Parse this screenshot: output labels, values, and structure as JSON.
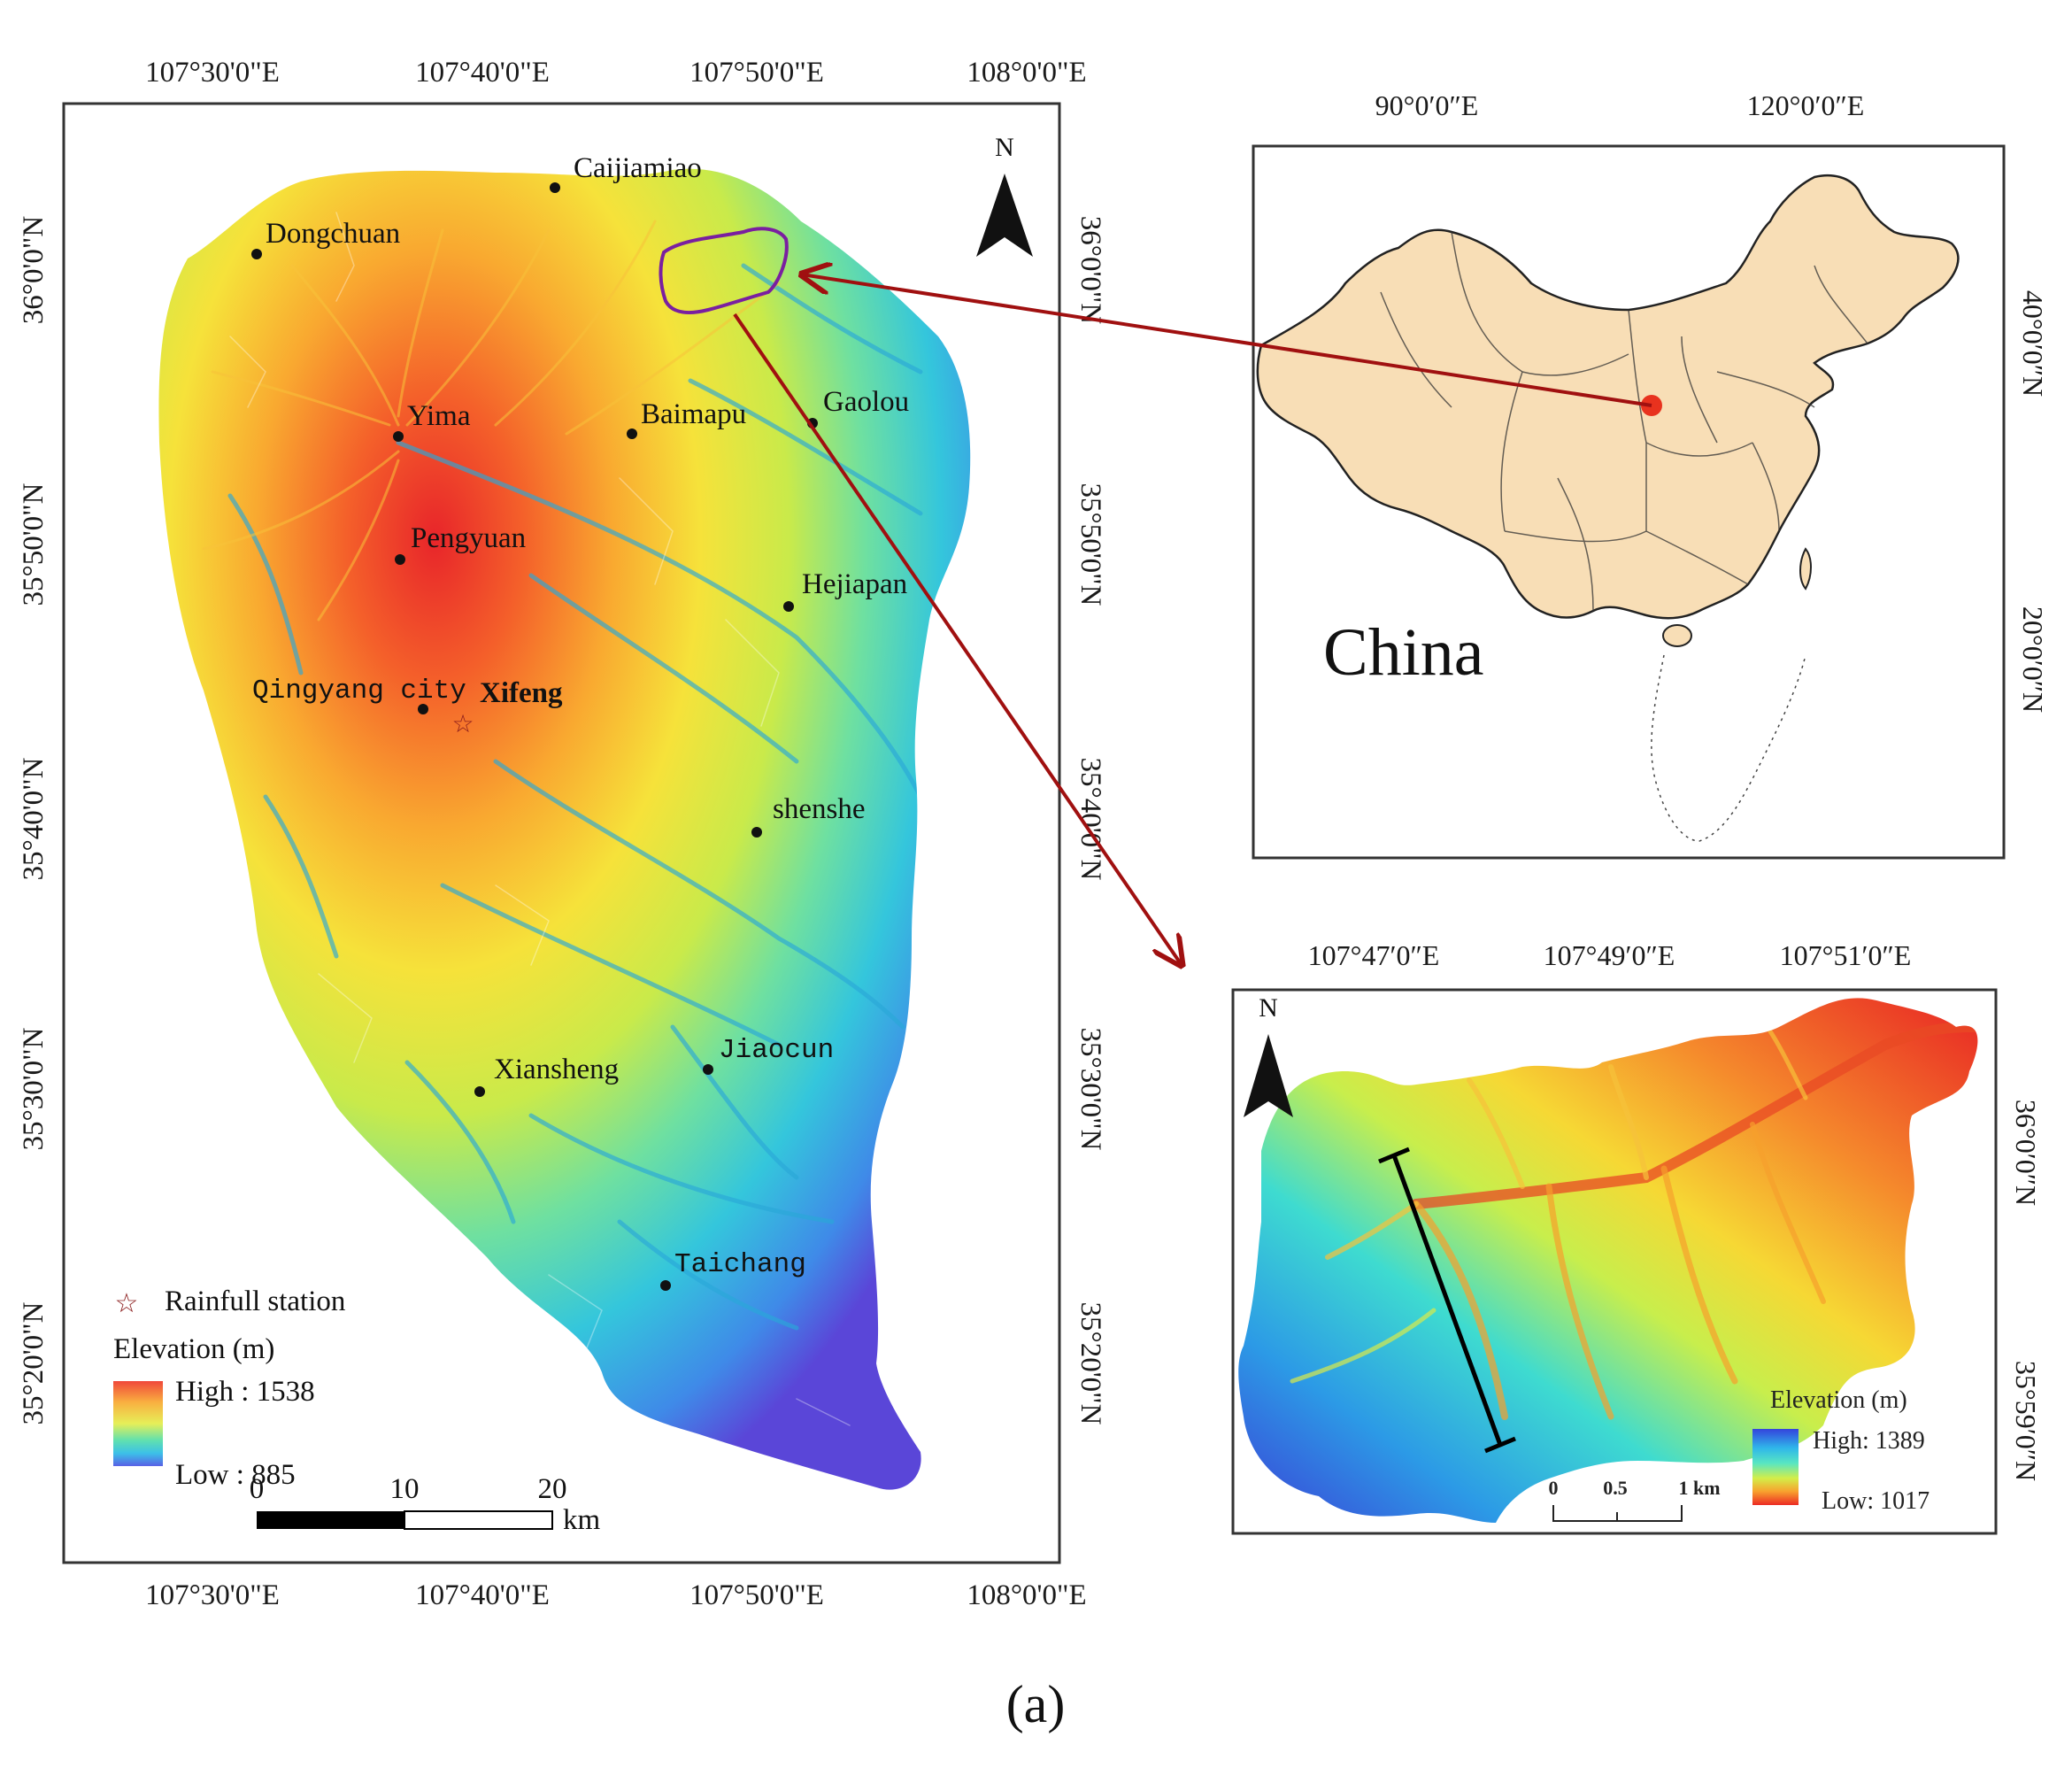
{
  "main_map": {
    "lon_ticks": [
      "107°30'0\"E",
      "107°40'0\"E",
      "107°50'0\"E",
      "108°0'0\"E"
    ],
    "lat_ticks": [
      "36°0'0\"N",
      "35°50'0\"N",
      "35°40'0\"N",
      "35°30'0\"N",
      "35°20'0\"N"
    ],
    "north_label": "N",
    "places": [
      {
        "name": "Caijiamiao"
      },
      {
        "name": "Dongchuan"
      },
      {
        "name": "Yima"
      },
      {
        "name": "Baimapu"
      },
      {
        "name": "Gaolou"
      },
      {
        "name": "Pengyuan"
      },
      {
        "name": "Hejiapan"
      },
      {
        "name": "Qingyang city"
      },
      {
        "name": "Xifeng"
      },
      {
        "name": "shenshe"
      },
      {
        "name": "Jiaocun"
      },
      {
        "name": "Xiansheng"
      },
      {
        "name": "Taichang"
      }
    ],
    "legend": {
      "station_label": "Rainfull station",
      "elevation_title": "Elevation (m)",
      "high_label": "High : 1538",
      "low_label": "Low : 885"
    },
    "scalebar": {
      "ticks": [
        "0",
        "10",
        "20"
      ],
      "unit": "km"
    }
  },
  "inset_china": {
    "lon_ticks": [
      "90°0′0″E",
      "120°0′0″E"
    ],
    "lat_ticks": [
      "40°0′0″N",
      "20°0′0″N"
    ],
    "label": "China"
  },
  "inset_basin": {
    "lon_ticks": [
      "107°47′0″E",
      "107°49′0″E",
      "107°51′0″E"
    ],
    "lat_ticks": [
      "36°0′0″N",
      "35°59′0″N"
    ],
    "north_label": "N",
    "legend": {
      "title": "Elevation (m)",
      "high_label": "High: 1389",
      "low_label": "Low: 1017"
    },
    "scalebar": {
      "ticks": [
        "0",
        "0.5",
        "1 km"
      ]
    }
  },
  "caption": "(a)",
  "colors": {
    "arrow": "#a01010",
    "basin_outline": "#7a1fa0",
    "china_fill": "#f8deb6",
    "highlight_dot": "#e8321e",
    "xifeng_label": "#e0101c"
  }
}
